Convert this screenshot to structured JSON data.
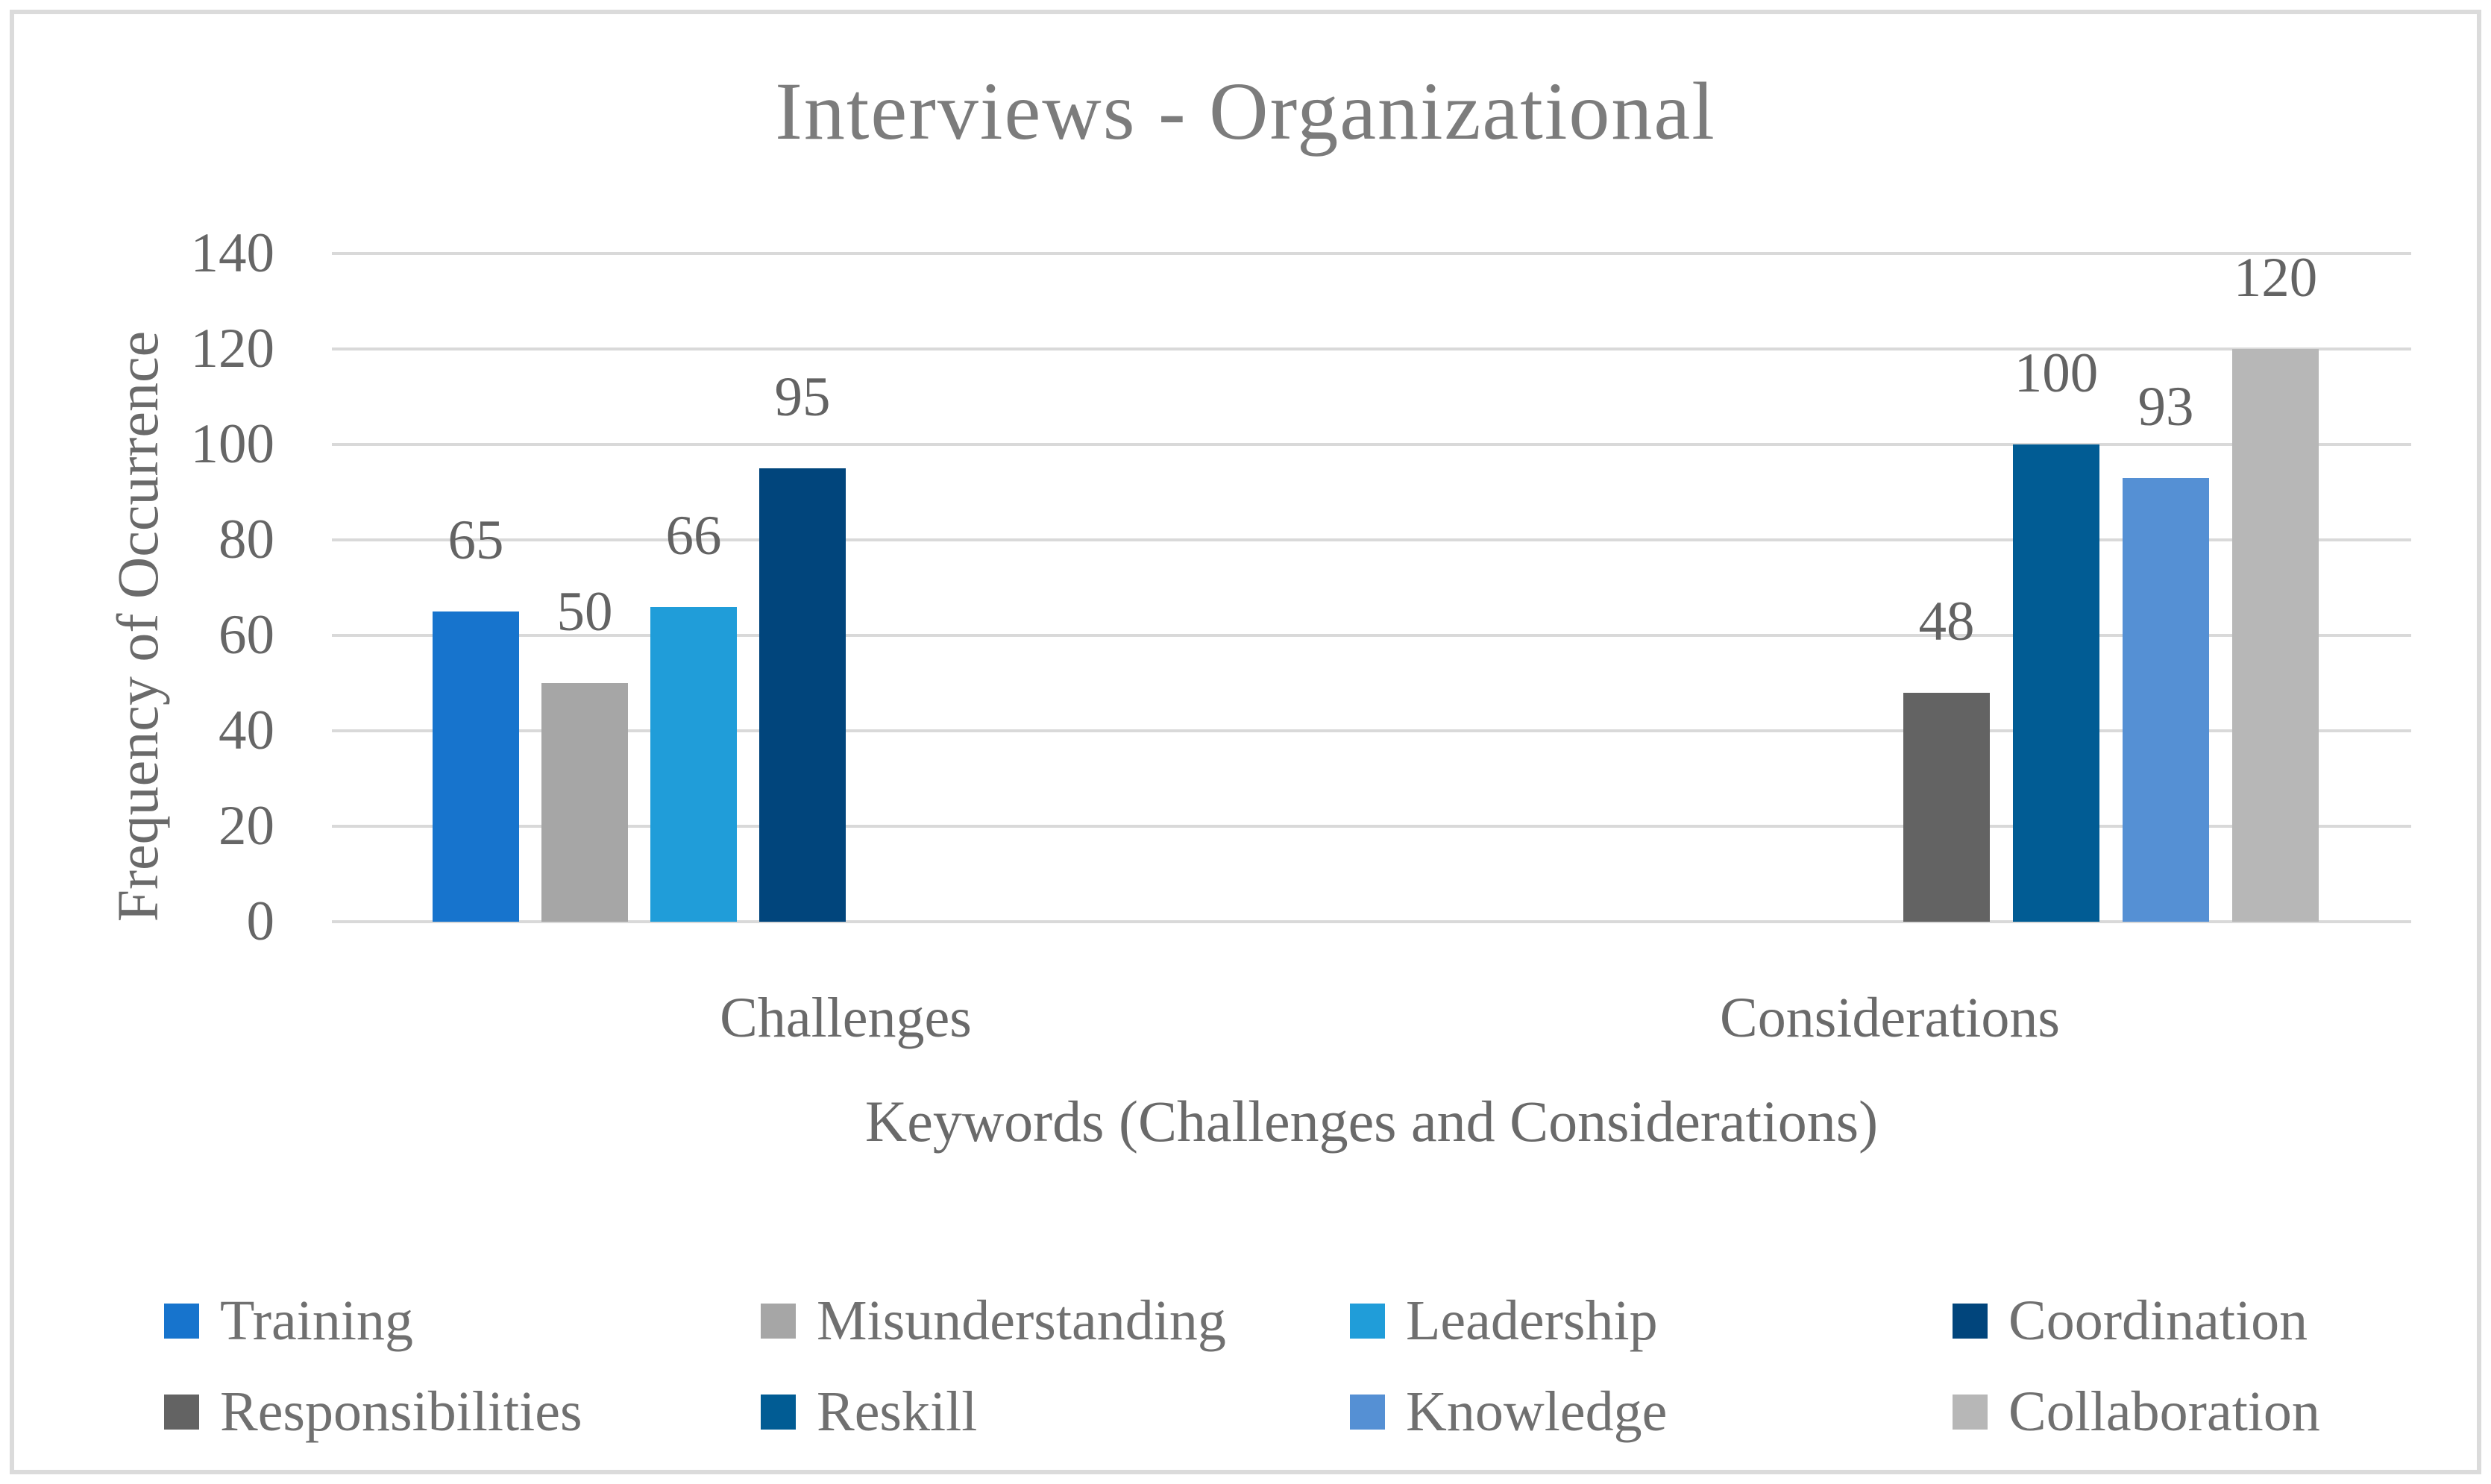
{
  "title": "Interviews - Organizational",
  "chart_data": {
    "type": "bar",
    "title": "Interviews - Organizational",
    "xlabel": "Keywords (Challenges and Considerations)",
    "ylabel": "Frequency of Occurrence",
    "categories": [
      "Challenges",
      "Considerations"
    ],
    "series": [
      {
        "name": "Training",
        "color": "#1774CD",
        "values": [
          65,
          null
        ]
      },
      {
        "name": "Misunderstanding",
        "color": "#A6A6A6",
        "values": [
          50,
          null
        ]
      },
      {
        "name": "Leadership",
        "color": "#209DD9",
        "values": [
          66,
          null
        ]
      },
      {
        "name": "Coordination",
        "color": "#01457C",
        "values": [
          95,
          null
        ]
      },
      {
        "name": "Responsibilities",
        "color": "#636363",
        "values": [
          null,
          48
        ]
      },
      {
        "name": "Reskill",
        "color": "#015C94",
        "values": [
          null,
          100
        ]
      },
      {
        "name": "Knowledge",
        "color": "#5590D4",
        "values": [
          null,
          93
        ]
      },
      {
        "name": "Collaboration",
        "color": "#B7B7B7",
        "values": [
          null,
          120
        ]
      }
    ],
    "ylim": [
      0,
      140
    ],
    "yticks": [
      0,
      20,
      40,
      60,
      80,
      100,
      120,
      140
    ],
    "grid": true,
    "data_labels": true,
    "legend_position": "bottom",
    "gridline_color": "#D9D9D9",
    "text_color": "#6A6A6A"
  }
}
